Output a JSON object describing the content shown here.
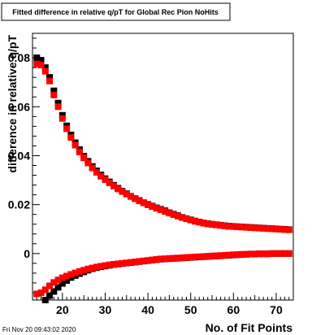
{
  "footer": {
    "timestamp": "Fri Nov 20 09:43:02 2020"
  },
  "colors": {
    "series_black": "#000000",
    "series_red": "#ff0000",
    "axis": "#000000",
    "background": "#ffffff"
  },
  "chart_data": {
    "type": "scatter",
    "title": "Fitted difference in relative q/pT for Global Rec Pion NoHits",
    "xlabel": "No. of Fit Points",
    "ylabel": "difference in relative q/pT",
    "xlim": [
      13,
      74
    ],
    "ylim": [
      -0.019,
      0.09
    ],
    "x_ticks": [
      20,
      30,
      40,
      50,
      60,
      70
    ],
    "x_tick_labels": [
      "20",
      "30",
      "40",
      "50",
      "60",
      "70"
    ],
    "y_ticks": [
      0,
      0.02,
      0.04,
      0.06,
      0.08
    ],
    "y_tick_labels": [
      "0",
      "0.02",
      "0.04",
      "0.06",
      "0.08"
    ],
    "grid": false,
    "legend": "none",
    "x": [
      14,
      15,
      16,
      17,
      18,
      19,
      20,
      21,
      22,
      23,
      24,
      25,
      26,
      27,
      28,
      29,
      30,
      31,
      32,
      33,
      34,
      35,
      36,
      37,
      38,
      39,
      40,
      41,
      42,
      43,
      44,
      45,
      46,
      47,
      48,
      49,
      50,
      51,
      52,
      53,
      54,
      55,
      56,
      57,
      58,
      59,
      60,
      61,
      62,
      63,
      64,
      65,
      66,
      67,
      68,
      69,
      70,
      71,
      72,
      73
    ],
    "series": [
      {
        "name": "",
        "color": "#000000",
        "values_upper": [
          0.08,
          0.079,
          0.076,
          0.072,
          0.0665,
          0.0615,
          0.0565,
          0.0522,
          0.0485,
          0.0453,
          0.0425,
          0.0398,
          0.0377,
          0.0356,
          0.0338,
          0.0321,
          0.0306,
          0.0293,
          0.0279,
          0.0267,
          0.0255,
          0.0245,
          0.0234,
          0.0225,
          0.0217,
          0.0208,
          0.0201,
          0.0194,
          0.0187,
          0.0181,
          0.0175,
          0.0167,
          0.0161,
          0.0155,
          0.0148,
          0.0143,
          0.0138,
          0.0133,
          0.0129,
          0.0125,
          0.0122,
          0.012,
          0.0118,
          0.0116,
          0.0114,
          0.0112,
          0.0111,
          0.011,
          0.0109,
          0.0108,
          0.0107,
          0.0106,
          0.0105,
          0.0104,
          0.0103,
          0.0102,
          0.0101,
          0.01,
          0.0099,
          0.0098
        ],
        "values_lower": [
          null,
          null,
          -0.019,
          -0.0172,
          -0.0155,
          -0.0138,
          -0.0122,
          -0.011,
          -0.0098,
          -0.009,
          -0.0082,
          -0.0075,
          -0.0068,
          -0.0062,
          -0.0058,
          -0.0054,
          -0.0051,
          -0.0048,
          -0.0045,
          -0.0043,
          -0.0041,
          -0.0039,
          -0.0037,
          -0.0035,
          -0.0033,
          -0.0031,
          -0.0029,
          -0.0027,
          -0.0025,
          -0.0023,
          -0.0022,
          -0.0021,
          -0.002,
          -0.0019,
          -0.0018,
          -0.0017,
          -0.0016,
          -0.0015,
          -0.0014,
          -0.0013,
          -0.0012,
          -0.0011,
          -0.001,
          -0.0009,
          -0.0008,
          -0.0007,
          -0.0006,
          -0.0005,
          -0.0004,
          -0.0003,
          -0.0002,
          -0.0002,
          -0.0001,
          -0.0001,
          -0.0001,
          0.0,
          0.0,
          0.0,
          0.0,
          0.0
        ]
      },
      {
        "name": "",
        "color": "#ff0000",
        "values_upper": [
          0.0775,
          0.077,
          0.0745,
          0.0705,
          0.0648,
          0.06,
          0.0552,
          0.051,
          0.0474,
          0.0443,
          0.0415,
          0.0391,
          0.037,
          0.035,
          0.0332,
          0.0316,
          0.0302,
          0.0289,
          0.0276,
          0.0264,
          0.0253,
          0.0243,
          0.0233,
          0.0224,
          0.0215,
          0.0207,
          0.0199,
          0.0192,
          0.0185,
          0.0179,
          0.0172,
          0.0165,
          0.0159,
          0.0153,
          0.0147,
          0.0142,
          0.0137,
          0.0132,
          0.0128,
          0.0124,
          0.0121,
          0.0119,
          0.0117,
          0.0115,
          0.0113,
          0.0111,
          0.011,
          0.0109,
          0.0108,
          0.0107,
          0.0106,
          0.0105,
          0.0104,
          0.0103,
          0.0102,
          0.0101,
          0.01,
          0.0099,
          0.0098,
          0.0097
        ],
        "values_lower": [
          -0.0165,
          -0.016,
          -0.0148,
          -0.0132,
          -0.0118,
          -0.0108,
          -0.0099,
          -0.0092,
          -0.0085,
          -0.0079,
          -0.0073,
          -0.0068,
          -0.0063,
          -0.0059,
          -0.0055,
          -0.0052,
          -0.0049,
          -0.0046,
          -0.0044,
          -0.0042,
          -0.004,
          -0.0038,
          -0.0036,
          -0.0034,
          -0.0032,
          -0.003,
          -0.0028,
          -0.0026,
          -0.0024,
          -0.0022,
          -0.0021,
          -0.002,
          -0.0019,
          -0.0018,
          -0.0017,
          -0.0016,
          -0.0015,
          -0.0014,
          -0.0013,
          -0.0012,
          -0.0011,
          -0.001,
          -0.0009,
          -0.0008,
          -0.0007,
          -0.0006,
          -0.0005,
          -0.0004,
          -0.0003,
          -0.0003,
          -0.0002,
          -0.0002,
          -0.0001,
          -0.0001,
          -0.0001,
          0.0,
          0.0,
          0.0,
          0.0,
          0.0
        ]
      }
    ]
  }
}
